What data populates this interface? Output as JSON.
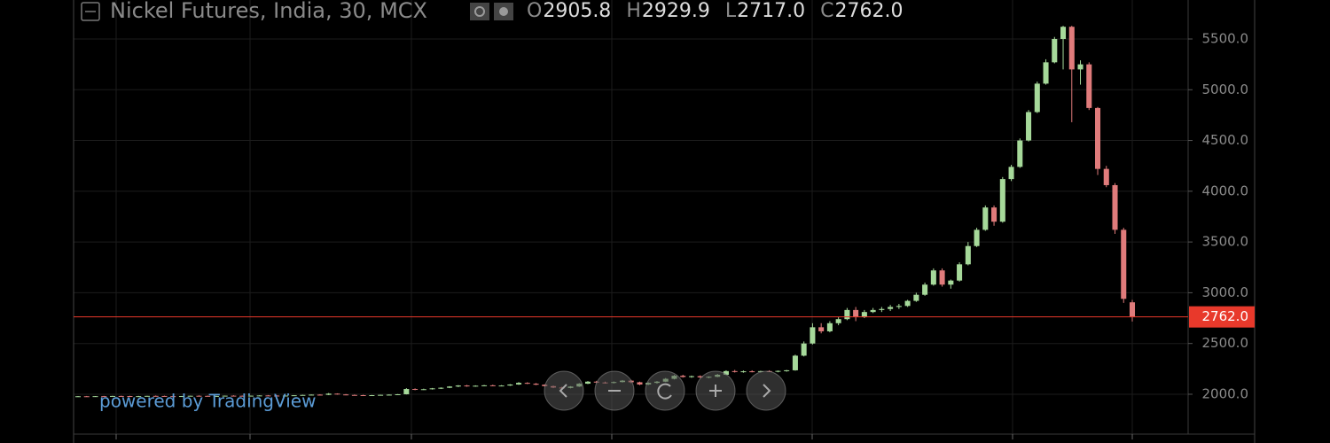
{
  "chart_data": {
    "type": "candlestick",
    "title": "Nickel Futures, India, 30, MCX",
    "ohlc_header": [
      {
        "key": "O",
        "text": "2905.8"
      },
      {
        "key": "H",
        "text": "2929.9"
      },
      {
        "key": "L",
        "text": "2717.0"
      },
      {
        "key": "C",
        "text": "2762.0"
      }
    ],
    "watermark": "powered by TradingView",
    "up_color": "#a6d99a",
    "down_color": "#e07b7b",
    "last_price": {
      "value": 2762.0,
      "label": "2762.0",
      "color": "#e8392b"
    },
    "ylim": [
      1607,
      5884
    ],
    "yticks": [
      {
        "value": 2000,
        "label": "2000.0"
      },
      {
        "value": 2500,
        "label": "2500.0"
      },
      {
        "value": 3000,
        "label": "3000.0"
      },
      {
        "value": 3500,
        "label": "3500.0"
      },
      {
        "value": 4000,
        "label": "4000.0"
      },
      {
        "value": 4500,
        "label": "4500.0"
      },
      {
        "value": 5000,
        "label": "5000.0"
      },
      {
        "value": 5500,
        "label": "5500.0"
      }
    ],
    "grid": true,
    "candles": [
      [
        1978,
        1982,
        1975,
        1980
      ],
      [
        1980,
        1983,
        1977,
        1979
      ],
      [
        1979,
        1982,
        1976,
        1981
      ],
      [
        1981,
        1984,
        1978,
        1980
      ],
      [
        1980,
        1985,
        1977,
        1983
      ],
      [
        1983,
        1986,
        1980,
        1982
      ],
      [
        1982,
        1985,
        1978,
        1980
      ],
      [
        1980,
        1984,
        1976,
        1981
      ],
      [
        1981,
        1985,
        1978,
        1984
      ],
      [
        1984,
        1988,
        1981,
        1983
      ],
      [
        1983,
        1986,
        1979,
        1981
      ],
      [
        1981,
        1984,
        1977,
        1980
      ],
      [
        1980,
        1983,
        1976,
        1982
      ],
      [
        1982,
        1986,
        1979,
        1985
      ],
      [
        1985,
        1989,
        1982,
        1984
      ],
      [
        1984,
        1987,
        1980,
        1982
      ],
      [
        1982,
        1985,
        1978,
        1983
      ],
      [
        1983,
        1987,
        1980,
        1986
      ],
      [
        1986,
        1990,
        1983,
        1985
      ],
      [
        1985,
        1988,
        1981,
        1984
      ],
      [
        1984,
        1987,
        1980,
        1986
      ],
      [
        1986,
        1990,
        1983,
        1988
      ],
      [
        1988,
        1992,
        1985,
        1987
      ],
      [
        1987,
        1990,
        1983,
        1985
      ],
      [
        1985,
        1988,
        1981,
        1987
      ],
      [
        1987,
        1991,
        1984,
        1990
      ],
      [
        1990,
        1995,
        1987,
        1993
      ],
      [
        1993,
        1998,
        1990,
        1996
      ],
      [
        1996,
        2000,
        1992,
        1994
      ],
      [
        1994,
        2012,
        1992,
        2006
      ],
      [
        2006,
        2009,
        1996,
        1998
      ],
      [
        1998,
        2002,
        1990,
        1993
      ],
      [
        1993,
        1997,
        1988,
        1991
      ],
      [
        1991,
        1995,
        1986,
        1989
      ],
      [
        1989,
        1993,
        1985,
        1991
      ],
      [
        1991,
        1996,
        1988,
        1994
      ],
      [
        1994,
        1999,
        1990,
        1996
      ],
      [
        1996,
        2002,
        1993,
        2000
      ],
      [
        2000,
        2060,
        1998,
        2052
      ],
      [
        2052,
        2058,
        2040,
        2046
      ],
      [
        2046,
        2055,
        2042,
        2050
      ],
      [
        2050,
        2062,
        2046,
        2058
      ],
      [
        2058,
        2068,
        2052,
        2064
      ],
      [
        2064,
        2080,
        2060,
        2076
      ],
      [
        2076,
        2090,
        2070,
        2086
      ],
      [
        2086,
        2092,
        2074,
        2080
      ],
      [
        2080,
        2088,
        2074,
        2084
      ],
      [
        2084,
        2092,
        2078,
        2088
      ],
      [
        2088,
        2094,
        2080,
        2084
      ],
      [
        2084,
        2090,
        2078,
        2086
      ],
      [
        2086,
        2100,
        2082,
        2096
      ],
      [
        2096,
        2120,
        2092,
        2112
      ],
      [
        2112,
        2118,
        2100,
        2104
      ],
      [
        2104,
        2110,
        2090,
        2094
      ],
      [
        2094,
        2098,
        2076,
        2080
      ],
      [
        2080,
        2086,
        2060,
        2066
      ],
      [
        2066,
        2074,
        2056,
        2062
      ],
      [
        2062,
        2080,
        2058,
        2076
      ],
      [
        2076,
        2110,
        2072,
        2104
      ],
      [
        2104,
        2130,
        2100,
        2124
      ],
      [
        2124,
        2132,
        2110,
        2116
      ],
      [
        2116,
        2124,
        2104,
        2112
      ],
      [
        2112,
        2126,
        2106,
        2120
      ],
      [
        2120,
        2140,
        2116,
        2134
      ],
      [
        2134,
        2142,
        2110,
        2118
      ],
      [
        2118,
        2124,
        2090,
        2096
      ],
      [
        2096,
        2118,
        2090,
        2112
      ],
      [
        2112,
        2130,
        2104,
        2124
      ],
      [
        2124,
        2160,
        2120,
        2152
      ],
      [
        2152,
        2190,
        2146,
        2182
      ],
      [
        2182,
        2192,
        2164,
        2170
      ],
      [
        2170,
        2184,
        2162,
        2178
      ],
      [
        2178,
        2186,
        2160,
        2166
      ],
      [
        2166,
        2176,
        2158,
        2172
      ],
      [
        2172,
        2200,
        2168,
        2192
      ],
      [
        2192,
        2236,
        2188,
        2228
      ],
      [
        2228,
        2240,
        2214,
        2220
      ],
      [
        2220,
        2234,
        2212,
        2226
      ],
      [
        2226,
        2236,
        2216,
        2222
      ],
      [
        2222,
        2232,
        2214,
        2228
      ],
      [
        2228,
        2236,
        2218,
        2224
      ],
      [
        2224,
        2234,
        2216,
        2230
      ],
      [
        2230,
        2240,
        2222,
        2236
      ],
      [
        2236,
        2390,
        2232,
        2380
      ],
      [
        2380,
        2520,
        2372,
        2500
      ],
      [
        2500,
        2700,
        2490,
        2660
      ],
      [
        2660,
        2700,
        2600,
        2620
      ],
      [
        2620,
        2720,
        2610,
        2700
      ],
      [
        2700,
        2760,
        2680,
        2740
      ],
      [
        2740,
        2850,
        2730,
        2830
      ],
      [
        2830,
        2860,
        2720,
        2760
      ],
      [
        2760,
        2830,
        2750,
        2810
      ],
      [
        2810,
        2850,
        2800,
        2830
      ],
      [
        2830,
        2860,
        2810,
        2840
      ],
      [
        2840,
        2880,
        2820,
        2860
      ],
      [
        2860,
        2890,
        2840,
        2870
      ],
      [
        2870,
        2930,
        2860,
        2920
      ],
      [
        2920,
        3000,
        2910,
        2980
      ],
      [
        2980,
        3100,
        2970,
        3080
      ],
      [
        3080,
        3240,
        3070,
        3220
      ],
      [
        3220,
        3240,
        3060,
        3080
      ],
      [
        3080,
        3130,
        3040,
        3120
      ],
      [
        3120,
        3300,
        3110,
        3280
      ],
      [
        3280,
        3500,
        3270,
        3460
      ],
      [
        3460,
        3640,
        3450,
        3620
      ],
      [
        3620,
        3860,
        3610,
        3840
      ],
      [
        3840,
        3860,
        3660,
        3700
      ],
      [
        3700,
        4140,
        3690,
        4120
      ],
      [
        4120,
        4260,
        4100,
        4240
      ],
      [
        4240,
        4520,
        4230,
        4500
      ],
      [
        4500,
        4800,
        4490,
        4780
      ],
      [
        4780,
        5080,
        4770,
        5060
      ],
      [
        5060,
        5300,
        5050,
        5270
      ],
      [
        5270,
        5520,
        5260,
        5500
      ],
      [
        5500,
        5630,
        5200,
        5620
      ],
      [
        5620,
        5630,
        4680,
        5200
      ],
      [
        5200,
        5290,
        5050,
        5250
      ],
      [
        5250,
        5270,
        4800,
        4820
      ],
      [
        4820,
        4830,
        4160,
        4220
      ],
      [
        4220,
        4250,
        4040,
        4060
      ],
      [
        4060,
        4080,
        3580,
        3620
      ],
      [
        3620,
        3640,
        2900,
        2940
      ],
      [
        2905.8,
        2929.9,
        2717.0,
        2762.0
      ]
    ]
  }
}
